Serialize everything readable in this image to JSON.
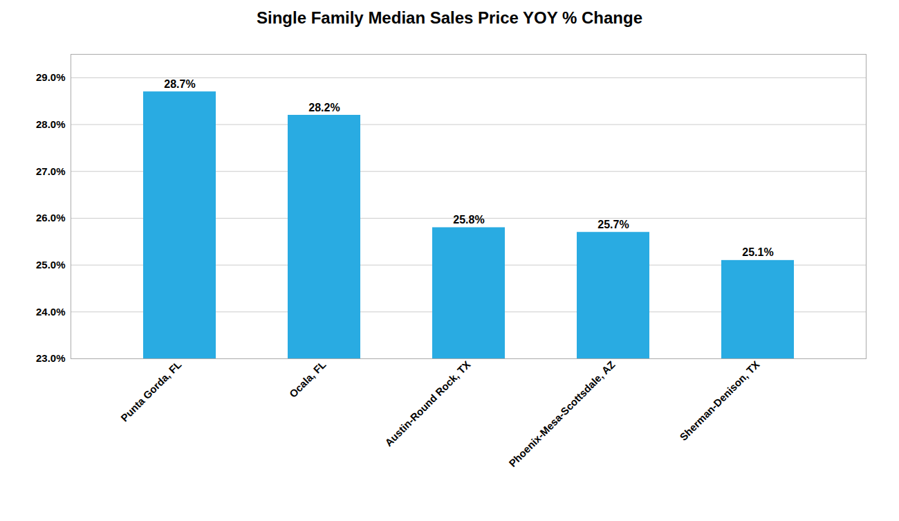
{
  "chart_data": {
    "type": "bar",
    "title": "Single Family Median Sales Price YOY % Change",
    "categories": [
      "Punta Gorda, FL",
      "Ocala, FL",
      "Austin-Round Rock, TX",
      "Phoenix-Mesa-Scottsdale, AZ",
      "Sherman-Denison, TX"
    ],
    "values": [
      28.7,
      28.2,
      25.8,
      25.7,
      25.1
    ],
    "value_labels": [
      "28.7%",
      "28.2%",
      "25.8%",
      "25.7%",
      "25.1%"
    ],
    "data_labels": true,
    "color": "#29ABE2",
    "ylim": [
      23.0,
      29.5
    ],
    "yticks": [
      {
        "value": 23.0,
        "label": "23.0%"
      },
      {
        "value": 24.0,
        "label": "24.0%"
      },
      {
        "value": 25.0,
        "label": "25.0%"
      },
      {
        "value": 26.0,
        "label": "26.0%"
      },
      {
        "value": 27.0,
        "label": "27.0%"
      },
      {
        "value": 28.0,
        "label": "28.0%"
      },
      {
        "value": 29.0,
        "label": "29.0%"
      }
    ],
    "grid": true
  }
}
